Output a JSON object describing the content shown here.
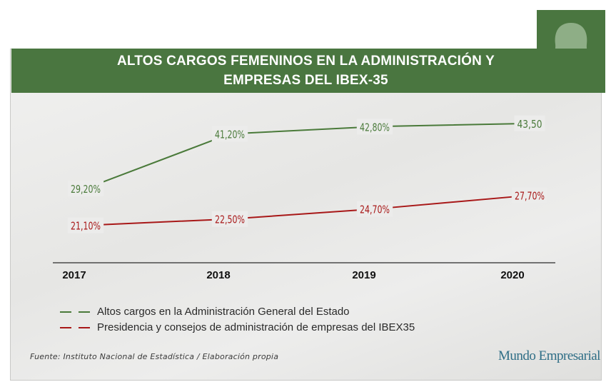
{
  "title": {
    "line1": "ALTOS CARGOS FEMENINOS EN LA ADMINISTRACIÓN Y",
    "line2": "EMPRESAS DEL IBEX-35"
  },
  "colors": {
    "title_bg": "#4a7640",
    "series_admin": "#4a7a3a",
    "series_ibex": "#a81818"
  },
  "chart_data": {
    "type": "line",
    "categories": [
      "2017",
      "2018",
      "2019",
      "2020"
    ],
    "series": [
      {
        "name": "Altos cargos en la Administración General del Estado",
        "values": [
          29.2,
          41.2,
          42.8,
          43.5
        ],
        "labels": [
          "29,20%",
          "41,20%",
          "42,80%",
          "43,50"
        ],
        "color": "#4a7a3a"
      },
      {
        "name": "Presidencia y consejos de administración de empresas del IBEX35",
        "values": [
          21.1,
          22.5,
          24.7,
          27.7
        ],
        "labels": [
          "21,10%",
          "22,50%",
          "24,70%",
          "27,70%"
        ],
        "color": "#a81818"
      }
    ],
    "grid": false,
    "legend": "bottom-left"
  },
  "legend": {
    "item1": "Altos cargos en la Administración General del Estado",
    "item2": "Presidencia y consejos de administración de empresas del IBEX35"
  },
  "source": "Fuente: Instituto Nacional de Estadística / Elaboración propia",
  "brand": "Mundo Empresarial",
  "avatar_icon": "woman-silhouette-icon"
}
